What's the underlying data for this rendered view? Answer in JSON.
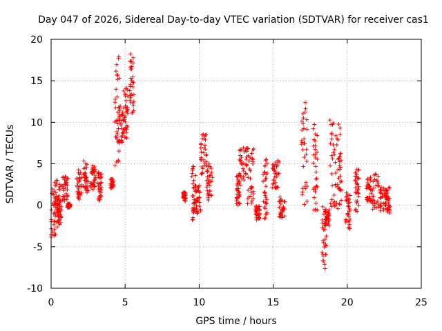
{
  "chart_data": {
    "type": "scatter",
    "title": "Day 047 of 2026, Sidereal Day-to-day VTEC variation (SDTVAR) for receiver cas1",
    "xlabel": "GPS time / hours",
    "ylabel": "SDTVAR / TECUs",
    "xlim": [
      0,
      25
    ],
    "ylim": [
      -10,
      20
    ],
    "xticks": [
      0,
      5,
      10,
      15,
      20,
      25
    ],
    "yticks": [
      -10,
      -5,
      0,
      5,
      10,
      15,
      20
    ],
    "xtick_labels": [
      "0",
      "5",
      "10",
      "15",
      "20",
      "25"
    ],
    "ytick_labels": [
      "-10",
      "-5",
      "0",
      "5",
      "10",
      "15",
      "20"
    ],
    "grid": true,
    "marker": "+",
    "color": "#ff0000",
    "series": [
      {
        "name": "SDTVAR",
        "clusters": [
          {
            "x": [
              0.0,
              0.35
            ],
            "y": [
              -4.8,
              2.0
            ]
          },
          {
            "x": [
              0.25,
              0.6
            ],
            "y": [
              -1.5,
              3.0
            ]
          },
          {
            "x": [
              0.4,
              0.7
            ],
            "y": [
              -2.7,
              0.8
            ]
          },
          {
            "x": [
              0.75,
              1.15
            ],
            "y": [
              0.5,
              3.5
            ]
          },
          {
            "x": [
              1.1,
              1.3
            ],
            "y": [
              -0.3,
              0.2
            ]
          },
          {
            "x": [
              1.7,
              2.1
            ],
            "y": [
              0.7,
              4.5
            ]
          },
          {
            "x": [
              2.2,
              2.5
            ],
            "y": [
              1.5,
              5.5
            ]
          },
          {
            "x": [
              2.6,
              3.0
            ],
            "y": [
              1.8,
              4.8
            ]
          },
          {
            "x": [
              3.1,
              3.4
            ],
            "y": [
              0.5,
              4.0
            ]
          },
          {
            "x": [
              4.0,
              4.2
            ],
            "y": [
              2.0,
              3.2
            ]
          },
          {
            "x": [
              4.3,
              4.6
            ],
            "y": [
              4.5,
              18.0
            ]
          },
          {
            "x": [
              4.6,
              4.9
            ],
            "y": [
              7.5,
              12.0
            ]
          },
          {
            "x": [
              4.9,
              5.2
            ],
            "y": [
              8.0,
              14.5
            ]
          },
          {
            "x": [
              5.3,
              5.6
            ],
            "y": [
              11.0,
              18.3
            ]
          },
          {
            "x": [
              8.9,
              9.1
            ],
            "y": [
              0.5,
              1.7
            ]
          },
          {
            "x": [
              9.5,
              9.8
            ],
            "y": [
              -1.8,
              5.0
            ]
          },
          {
            "x": [
              9.7,
              10.1
            ],
            "y": [
              -1.2,
              2.5
            ]
          },
          {
            "x": [
              10.1,
              10.5
            ],
            "y": [
              3.5,
              8.6
            ]
          },
          {
            "x": [
              10.5,
              10.9
            ],
            "y": [
              0.5,
              5.0
            ]
          },
          {
            "x": [
              12.5,
              12.8
            ],
            "y": [
              0.0,
              4.0
            ]
          },
          {
            "x": [
              12.7,
              13.3
            ],
            "y": [
              3.0,
              7.0
            ]
          },
          {
            "x": [
              13.2,
              13.7
            ],
            "y": [
              -0.2,
              6.8
            ]
          },
          {
            "x": [
              13.8,
              14.1
            ],
            "y": [
              -1.8,
              0.0
            ]
          },
          {
            "x": [
              14.3,
              14.6
            ],
            "y": [
              -2.2,
              5.8
            ]
          },
          {
            "x": [
              14.9,
              15.4
            ],
            "y": [
              2.0,
              5.5
            ]
          },
          {
            "x": [
              15.4,
              15.8
            ],
            "y": [
              -1.5,
              1.0
            ]
          },
          {
            "x": [
              16.9,
              17.3
            ],
            "y": [
              0.0,
              12.5
            ]
          },
          {
            "x": [
              17.7,
              18.0
            ],
            "y": [
              -1.0,
              10.0
            ]
          },
          {
            "x": [
              18.3,
              18.6
            ],
            "y": [
              -7.8,
              -0.1
            ]
          },
          {
            "x": [
              18.5,
              18.8
            ],
            "y": [
              -2.5,
              -0.5
            ]
          },
          {
            "x": [
              18.8,
              19.3
            ],
            "y": [
              -0.8,
              10.8
            ]
          },
          {
            "x": [
              19.3,
              19.6
            ],
            "y": [
              -0.5,
              10.0
            ]
          },
          {
            "x": [
              19.9,
              20.2
            ],
            "y": [
              -3.0,
              1.5
            ]
          },
          {
            "x": [
              20.5,
              20.8
            ],
            "y": [
              -1.0,
              4.5
            ]
          },
          {
            "x": [
              21.3,
              21.6
            ],
            "y": [
              0.5,
              3.5
            ]
          },
          {
            "x": [
              21.6,
              22.2
            ],
            "y": [
              -0.5,
              3.8
            ]
          },
          {
            "x": [
              22.2,
              22.6
            ],
            "y": [
              -0.8,
              2.5
            ]
          },
          {
            "x": [
              22.6,
              22.9
            ],
            "y": [
              -1.0,
              2.2
            ]
          }
        ],
        "count": 1200
      }
    ]
  }
}
